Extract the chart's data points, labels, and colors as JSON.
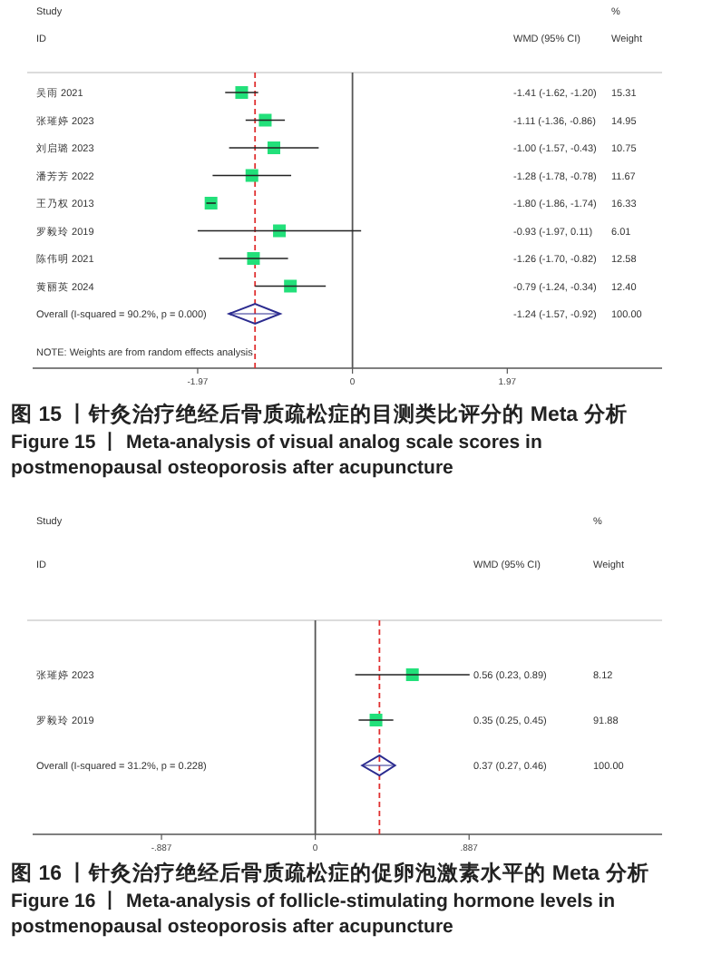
{
  "chart_data": [
    {
      "type": "scatter",
      "orientation": "horizontal",
      "title": "图 15 丨针灸治疗绝经后骨质疏松症的目测类比评分的 Meta 分析",
      "subtitle": "Figure 15 丨 Meta-analysis of visual analog scale scores in postmenopausal osteoporosis after acupuncture",
      "categories": [
        "吴雨 2021",
        "张璀婷 2023",
        "刘启璐 2023",
        "潘芳芳 2022",
        "王乃权 2013",
        "罗毅玲 2019",
        "陈伟明 2021",
        "黄丽英 2024",
        "Overall  (I-squared = 90.2%, p = 0.000)"
      ],
      "xlim": [
        -4.07,
        3.94
      ],
      "xticks": [
        -1.97,
        0,
        1.97
      ],
      "series": [
        {
          "type": "scatter",
          "marker": "square",
          "color": "#22e07a",
          "values": [
            -1.41,
            -1.11,
            -1.0,
            -1.28,
            -1.8,
            -0.93,
            -1.26,
            -0.79,
            null
          ],
          "errors": [
            [
              -1.62,
              -1.2
            ],
            [
              -1.36,
              -0.86
            ],
            [
              -1.57,
              -0.43
            ],
            [
              -1.78,
              -0.78
            ],
            [
              -1.86,
              -1.74
            ],
            [
              -1.97,
              0.11
            ],
            [
              -1.7,
              -0.82
            ],
            [
              -1.24,
              -0.34
            ],
            null
          ]
        },
        {
          "type": "scatter",
          "marker": "diamond",
          "color": "#2b2b8f",
          "values": [
            null,
            null,
            null,
            null,
            null,
            null,
            null,
            null,
            -1.24
          ],
          "errors": [
            null,
            null,
            null,
            null,
            null,
            null,
            null,
            null,
            [
              -1.57,
              -0.92
            ]
          ]
        }
      ],
      "ref_lines": [
        {
          "axis": "x",
          "value": 0,
          "color": "#555555",
          "line_style": "solid"
        },
        {
          "axis": "x",
          "value": -1.24,
          "color": "#e03030",
          "line_style": "dashed"
        }
      ],
      "annotations": [
        "Study",
        "ID",
        "WMD (95% CI)",
        "%",
        "Weight",
        "-1.41 (-1.62, -1.20)",
        "15.31",
        "-1.11 (-1.36, -0.86)",
        "14.95",
        "-1.00 (-1.57, -0.43)",
        "10.75",
        "-1.28 (-1.78, -0.78)",
        "11.67",
        "-1.80 (-1.86, -1.74)",
        "16.33",
        "-0.93 (-1.97, 0.11)",
        "6.01",
        "-1.26 (-1.70, -0.82)",
        "12.58",
        "-0.79 (-1.24, -0.34)",
        "12.40",
        "-1.24 (-1.57, -0.92)",
        "100.00",
        "NOTE: Weights are from random effects analysis"
      ]
    },
    {
      "type": "scatter",
      "orientation": "horizontal",
      "title": "图 16 丨针灸治疗绝经后骨质疏松症的促卵泡激素水平的 Meta 分析",
      "subtitle": "Figure 16 丨 Meta-analysis of follicle-stimulating hormone levels in postmenopausal osteoporosis after acupuncture",
      "categories": [
        "张璀婷 2023",
        "罗毅玲 2019",
        "Overall  (I-squared = 31.2%, p = 0.228)"
      ],
      "xlim": [
        -1.63,
        2.0
      ],
      "xticks": [
        {
          "value": -0.887,
          "label": "-.887"
        },
        0,
        {
          "value": 0.887,
          "label": ".887"
        }
      ],
      "series": [
        {
          "type": "scatter",
          "marker": "square",
          "color": "#22e07a",
          "values": [
            0.56,
            0.35,
            null
          ],
          "errors": [
            [
              0.23,
              0.89
            ],
            [
              0.25,
              0.45
            ],
            null
          ]
        },
        {
          "type": "scatter",
          "marker": "diamond",
          "color": "#2b2b8f",
          "values": [
            null,
            null,
            0.37
          ],
          "errors": [
            null,
            null,
            [
              0.27,
              0.46
            ]
          ]
        }
      ],
      "ref_lines": [
        {
          "axis": "x",
          "value": 0,
          "color": "#555555",
          "line_style": "solid"
        },
        {
          "axis": "x",
          "value": 0.37,
          "color": "#e03030",
          "line_style": "dashed"
        }
      ],
      "annotations": [
        "Study",
        "ID",
        "WMD (95% CI)",
        "%",
        "Weight",
        "0.56 (0.23, 0.89)",
        "8.12",
        "0.35 (0.25, 0.45)",
        "91.88",
        "0.37 (0.27, 0.46)",
        "100.00"
      ]
    }
  ]
}
